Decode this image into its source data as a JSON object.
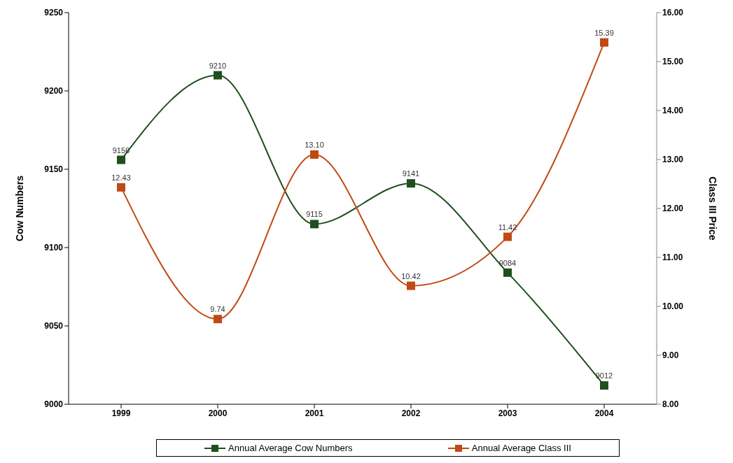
{
  "chart_data": {
    "type": "line",
    "categories": [
      "1999",
      "2000",
      "2001",
      "2002",
      "2003",
      "2004"
    ],
    "ylabel": "Cow Numbers",
    "y2label": "Class III Price",
    "series": [
      {
        "name": "Annual Average Cow Numbers",
        "color": "#1f4f1f",
        "values": [
          9156,
          9210,
          9115,
          9141,
          9084,
          9012
        ],
        "value_labels": [
          "9156",
          "9210",
          "9115",
          "9141",
          "9084",
          "9012"
        ]
      },
      {
        "name": "Annual Average Class III",
        "color": "#c04a14",
        "values": [
          12.43,
          9.74,
          13.1,
          10.42,
          11.42,
          15.39
        ],
        "value_labels": [
          "12.43",
          "9.74",
          "13.10",
          "10.42",
          "11.42",
          "15.39"
        ],
        "axis": "y2"
      }
    ],
    "ylim": [
      9000,
      9250
    ],
    "yticks": [
      9000,
      9050,
      9100,
      9150,
      9200,
      9250
    ],
    "y2lim": [
      8,
      16
    ],
    "y2ticks": [
      {
        "value": 8,
        "label": "8.00"
      },
      {
        "value": 9,
        "label": "9.00"
      },
      {
        "value": 10,
        "label": "10.00"
      },
      {
        "value": 11,
        "label": "11.00"
      },
      {
        "value": 12,
        "label": "12.00"
      },
      {
        "value": 13,
        "label": "13.00"
      },
      {
        "value": 14,
        "label": "14.00"
      },
      {
        "value": 15,
        "label": "15.00"
      },
      {
        "value": 16,
        "label": "16.00"
      }
    ],
    "marker": "square",
    "line_style": "solid",
    "legend": "bottom",
    "grid": false
  }
}
